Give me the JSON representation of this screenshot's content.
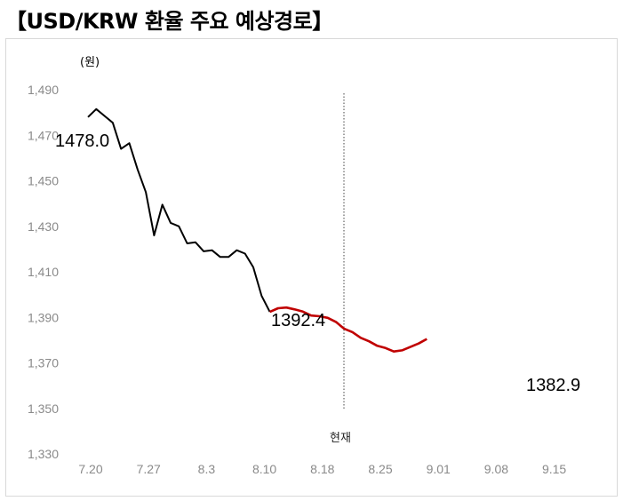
{
  "title": "【USD/KRW 환율 주요 예상경로】",
  "chart_data": {
    "type": "line",
    "unit_label": "(원)",
    "now_label": "현재",
    "ylim": [
      1330,
      1490
    ],
    "y_ticks": [
      "1,490",
      "1,470",
      "1,450",
      "1,430",
      "1,410",
      "1,390",
      "1,370",
      "1,350",
      "1,330"
    ],
    "x_ticks": [
      "7.20",
      "7.27",
      "8.3",
      "8.10",
      "8.18",
      "8.25",
      "9.01",
      "9.08",
      "9.15"
    ],
    "grid": false,
    "series": [
      {
        "color": "#000000",
        "values": [
          1478.0,
          1481.5,
          1478.5,
          1475.5,
          1464.0,
          1466.5,
          1455.0,
          1445.0,
          1426.0,
          1439.5,
          1431.5,
          1430.0,
          1422.5,
          1423.0,
          1419.0,
          1419.5,
          1416.5,
          1416.5,
          1419.5,
          1418.0,
          1412.0,
          1399.5,
          1392.4
        ]
      },
      {
        "color": "#c00000",
        "values": [
          1392.4,
          1394.0,
          1394.3,
          1393.5,
          1392.5,
          1390.8,
          1390.5,
          1389.8,
          1388.0,
          1385.0,
          1383.5,
          1381.0,
          1379.5,
          1377.5,
          1376.5,
          1375.0,
          1375.5,
          1377.0,
          1378.5,
          1380.5
        ]
      }
    ],
    "annotations": [
      "1478.0",
      "1392.4",
      "1382.9"
    ]
  }
}
